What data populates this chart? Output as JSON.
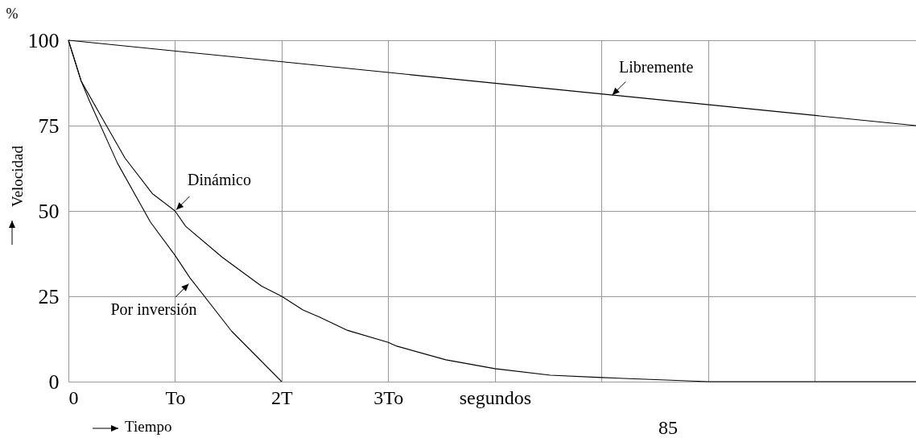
{
  "chart_data": {
    "type": "line",
    "xlabel": "Tiempo",
    "ylabel": "Velocidad",
    "xlim": [
      0,
      7.95
    ],
    "ylim": [
      0,
      100
    ],
    "xticks": [
      0,
      {
        "value": 1,
        "label": "To"
      },
      {
        "value": 2,
        "label": "2T"
      },
      {
        "value": 3,
        "label": "3To"
      },
      {
        "value": 4,
        "label": "segundos"
      },
      {
        "value": 5,
        "label": null
      },
      {
        "value": 6,
        "label": null
      },
      {
        "value": 7,
        "label": null
      }
    ],
    "yticks": [
      0,
      25,
      50,
      75,
      100
    ],
    "grid": true,
    "series": [
      {
        "color": "#000000",
        "x": [
          0,
          7.95
        ],
        "values": [
          100,
          75
        ]
      },
      {
        "color": "#000000",
        "x": [
          0,
          0.12,
          0.32,
          0.53,
          0.79,
          1,
          1.1,
          1.44,
          1.81,
          2,
          2.2,
          2.35,
          2.62,
          3,
          3.08,
          3.54,
          4,
          4.52,
          5,
          6,
          7.95
        ],
        "values": [
          100,
          88,
          77,
          65.5,
          55,
          50,
          45.5,
          36.5,
          28,
          25,
          21,
          19,
          15,
          11.5,
          10.4,
          6.4,
          3.8,
          1.9,
          1.2,
          0,
          0
        ]
      },
      {
        "color": "#000000",
        "x": [
          0,
          0.12,
          0.2,
          0.46,
          0.77,
          1,
          1.14,
          1.53,
          2
        ],
        "values": [
          100,
          88,
          82,
          64,
          46.7,
          37,
          30.4,
          14.8,
          0
        ]
      }
    ],
    "annotations": [
      {
        "text": "Libremente",
        "x": 5.09,
        "y": 83.6
      },
      {
        "text": "Dinámico",
        "x": 1,
        "y": 50
      },
      {
        "text": "Por inversión",
        "x": 1.14,
        "y": 29
      },
      "%",
      "85"
    ]
  }
}
